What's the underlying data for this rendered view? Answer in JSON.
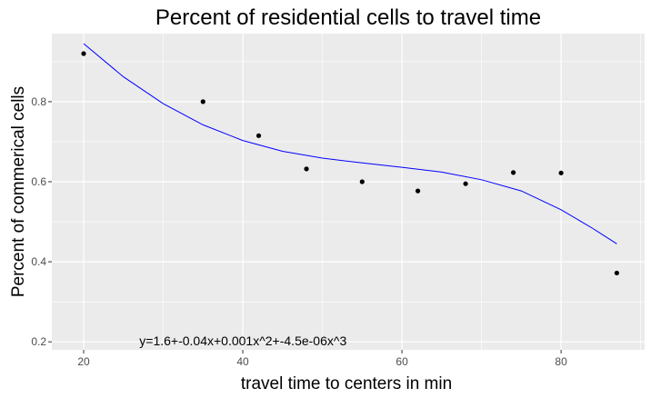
{
  "chart_data": {
    "type": "scatter",
    "title": "Percent of residential cells to travel time",
    "xlabel": "travel time to centers in min",
    "ylabel": "Percent of commerical cells",
    "xlim": [
      16,
      90.5
    ],
    "ylim": [
      0.18,
      0.97
    ],
    "x_ticks": [
      20,
      40,
      60,
      80
    ],
    "y_ticks": [
      0.2,
      0.4,
      0.6,
      0.8
    ],
    "x_tick_labels": [
      "20",
      "40",
      "60",
      "80"
    ],
    "y_tick_labels": [
      "0.2",
      "0.4",
      "0.6",
      "0.8"
    ],
    "grid": true,
    "colors": {
      "panel": "#ebebeb",
      "grid": "#ffffff",
      "points": "#000000",
      "fit_line": "#0000ff"
    },
    "points": [
      {
        "x": 20,
        "y": 0.92
      },
      {
        "x": 35,
        "y": 0.8
      },
      {
        "x": 42,
        "y": 0.715
      },
      {
        "x": 48,
        "y": 0.632
      },
      {
        "x": 55,
        "y": 0.6
      },
      {
        "x": 62,
        "y": 0.577
      },
      {
        "x": 68,
        "y": 0.595
      },
      {
        "x": 74,
        "y": 0.623
      },
      {
        "x": 80,
        "y": 0.622
      },
      {
        "x": 87,
        "y": 0.372
      }
    ],
    "fit_line": {
      "x": [
        20,
        25,
        30,
        35,
        40,
        45,
        50,
        55,
        60,
        65,
        70,
        75,
        80,
        84,
        87
      ],
      "y": [
        0.945,
        0.862,
        0.795,
        0.742,
        0.703,
        0.676,
        0.659,
        0.647,
        0.636,
        0.624,
        0.605,
        0.577,
        0.53,
        0.483,
        0.445
      ]
    },
    "annotation": "y=1.6+-0.04x+0.001x^2+-4.5e-06x^3"
  }
}
